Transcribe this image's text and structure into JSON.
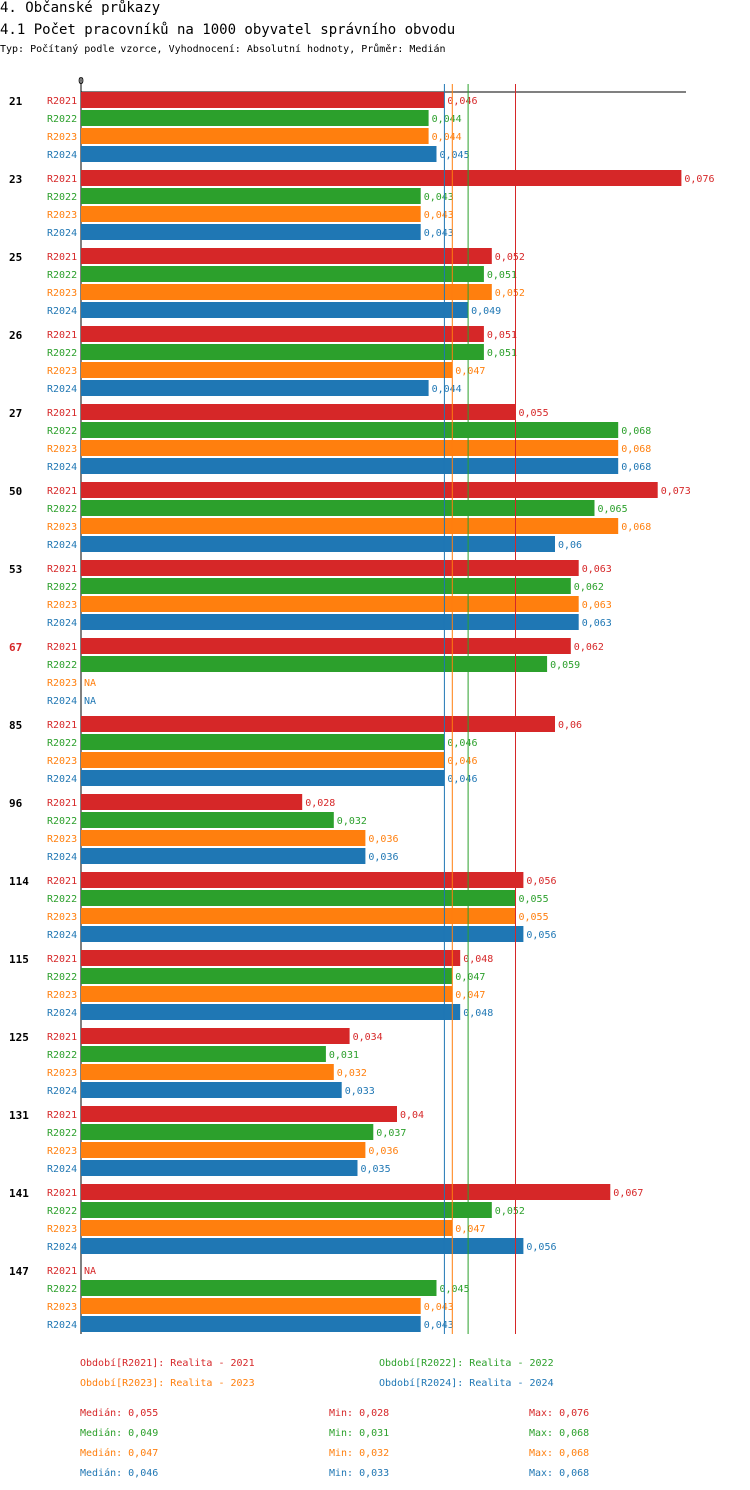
{
  "section_title": "4. Občanské průkazy",
  "chart_title": "4.1 Počet pracovníků na 1000 obyvatel správního obvodu",
  "subtitle": "Typ: Počítaný podle vzorce, Vyhodnocení: Absolutní hodnoty, Průměr: Medián",
  "chart_data": {
    "type": "bar",
    "orientation": "horizontal",
    "title": "4.1 Počet pracovníků na 1000 obyvatel správního obvodu",
    "axis_zero_label": "0",
    "categories": [
      "21",
      "23",
      "25",
      "26",
      "27",
      "50",
      "53",
      "67",
      "85",
      "96",
      "114",
      "115",
      "125",
      "131",
      "141",
      "147"
    ],
    "highlighted_category": "67",
    "na_label": "NA",
    "colors": {
      "R2021": "#d62728",
      "R2022": "#2ca02c",
      "R2023": "#ff7f0e",
      "R2024": "#1f77b4"
    },
    "series": [
      {
        "name": "R2021",
        "values": [
          0.046,
          0.076,
          0.052,
          0.051,
          0.055,
          0.073,
          0.063,
          0.062,
          0.06,
          0.028,
          0.056,
          0.048,
          0.034,
          0.04,
          0.067,
          null
        ]
      },
      {
        "name": "R2022",
        "values": [
          0.044,
          0.043,
          0.051,
          0.051,
          0.068,
          0.065,
          0.062,
          0.059,
          0.046,
          0.032,
          0.055,
          0.047,
          0.031,
          0.037,
          0.052,
          0.045
        ]
      },
      {
        "name": "R2023",
        "values": [
          0.044,
          0.043,
          0.052,
          0.047,
          0.068,
          0.068,
          0.063,
          null,
          0.046,
          0.036,
          0.055,
          0.047,
          0.032,
          0.036,
          0.047,
          0.043
        ]
      },
      {
        "name": "R2024",
        "values": [
          0.045,
          0.043,
          0.049,
          0.044,
          0.068,
          0.06,
          0.063,
          null,
          0.046,
          0.036,
          0.056,
          0.048,
          0.033,
          0.035,
          0.056,
          0.043
        ]
      }
    ],
    "reference_lines": [
      {
        "series": "R2021",
        "label": "Medián",
        "value": 0.055
      },
      {
        "series": "R2022",
        "label": "Medián",
        "value": 0.049
      },
      {
        "series": "R2023",
        "label": "Medián",
        "value": 0.047
      },
      {
        "series": "R2024",
        "label": "Medián",
        "value": 0.046
      }
    ],
    "legend": [
      {
        "series": "R2021",
        "text": "Období[R2021]: Realita - 2021"
      },
      {
        "series": "R2022",
        "text": "Období[R2022]: Realita - 2022"
      },
      {
        "series": "R2023",
        "text": "Období[R2023]: Realita - 2023"
      },
      {
        "series": "R2024",
        "text": "Období[R2024]: Realita - 2024"
      }
    ],
    "stats": [
      {
        "series": "R2021",
        "median": "Medián: 0,055",
        "min": "Min: 0,028",
        "max": "Max: 0,076"
      },
      {
        "series": "R2022",
        "median": "Medián: 0,049",
        "min": "Min: 0,031",
        "max": "Max: 0,068"
      },
      {
        "series": "R2023",
        "median": "Medián: 0,047",
        "min": "Min: 0,032",
        "max": "Max: 0,068"
      },
      {
        "series": "R2024",
        "median": "Medián: 0,046",
        "min": "Min: 0,033",
        "max": "Max: 0,068"
      }
    ]
  }
}
